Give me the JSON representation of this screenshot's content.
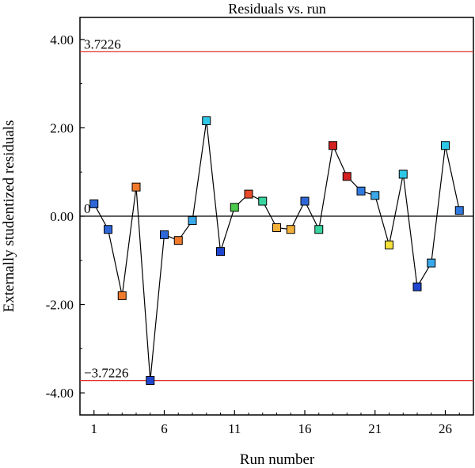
{
  "chart_data": {
    "type": "scatter",
    "title": "Residuals vs. run",
    "xlabel": "Run number",
    "ylabel": "Externally studentized residuals",
    "xlim": [
      0,
      28
    ],
    "ylim": [
      -4.5,
      4.5
    ],
    "x_ticks": [
      1,
      6,
      11,
      16,
      21,
      26
    ],
    "y_ticks": [
      {
        "value": 4,
        "label": "4.00"
      },
      {
        "value": 2,
        "label": "2.00"
      },
      {
        "value": 0,
        "label": "0.00"
      },
      {
        "value": -2,
        "label": "-2.00"
      },
      {
        "value": -4,
        "label": "-4.00"
      }
    ],
    "reference_lines": [
      {
        "value": 3.7226,
        "label": "3.7226",
        "color": "#e03030"
      },
      {
        "value": 0,
        "label": "0",
        "color": "#000000"
      },
      {
        "value": -3.7226,
        "label": "−3.7226",
        "color": "#e03030"
      }
    ],
    "points": [
      {
        "run": 1,
        "value": 0.28,
        "color": "#2f67d8"
      },
      {
        "run": 2,
        "value": -0.3,
        "color": "#2f67d8"
      },
      {
        "run": 3,
        "value": -1.8,
        "color": "#f07a2a"
      },
      {
        "run": 4,
        "value": 0.66,
        "color": "#f07a2a"
      },
      {
        "run": 5,
        "value": -3.72,
        "color": "#2046d0"
      },
      {
        "run": 6,
        "value": -0.42,
        "color": "#2f67d8"
      },
      {
        "run": 7,
        "value": -0.55,
        "color": "#f07a2a"
      },
      {
        "run": 8,
        "value": -0.1,
        "color": "#3aa8e8"
      },
      {
        "run": 9,
        "value": 2.16,
        "color": "#2ec8e6"
      },
      {
        "run": 10,
        "value": -0.8,
        "color": "#2046d0"
      },
      {
        "run": 11,
        "value": 0.2,
        "color": "#4ccc4c"
      },
      {
        "run": 12,
        "value": 0.5,
        "color": "#e84a2a"
      },
      {
        "run": 13,
        "value": 0.34,
        "color": "#38d4a0"
      },
      {
        "run": 14,
        "value": -0.26,
        "color": "#f2b03a"
      },
      {
        "run": 15,
        "value": -0.3,
        "color": "#f2b03a"
      },
      {
        "run": 16,
        "value": 0.34,
        "color": "#2f67d8"
      },
      {
        "run": 17,
        "value": -0.3,
        "color": "#38d4a0"
      },
      {
        "run": 18,
        "value": 1.6,
        "color": "#d42020"
      },
      {
        "run": 19,
        "value": 0.9,
        "color": "#d42020"
      },
      {
        "run": 20,
        "value": 0.57,
        "color": "#2f7ae0"
      },
      {
        "run": 21,
        "value": 0.47,
        "color": "#3aa8e8"
      },
      {
        "run": 22,
        "value": -0.65,
        "color": "#f5e23a"
      },
      {
        "run": 23,
        "value": 0.95,
        "color": "#2ec8e6"
      },
      {
        "run": 24,
        "value": -1.6,
        "color": "#2046d0"
      },
      {
        "run": 25,
        "value": -1.06,
        "color": "#3aa8e8"
      },
      {
        "run": 26,
        "value": 1.6,
        "color": "#2ec8e6"
      },
      {
        "run": 27,
        "value": 0.13,
        "color": "#2f7ae0"
      }
    ],
    "grid": false,
    "legend": "none"
  }
}
